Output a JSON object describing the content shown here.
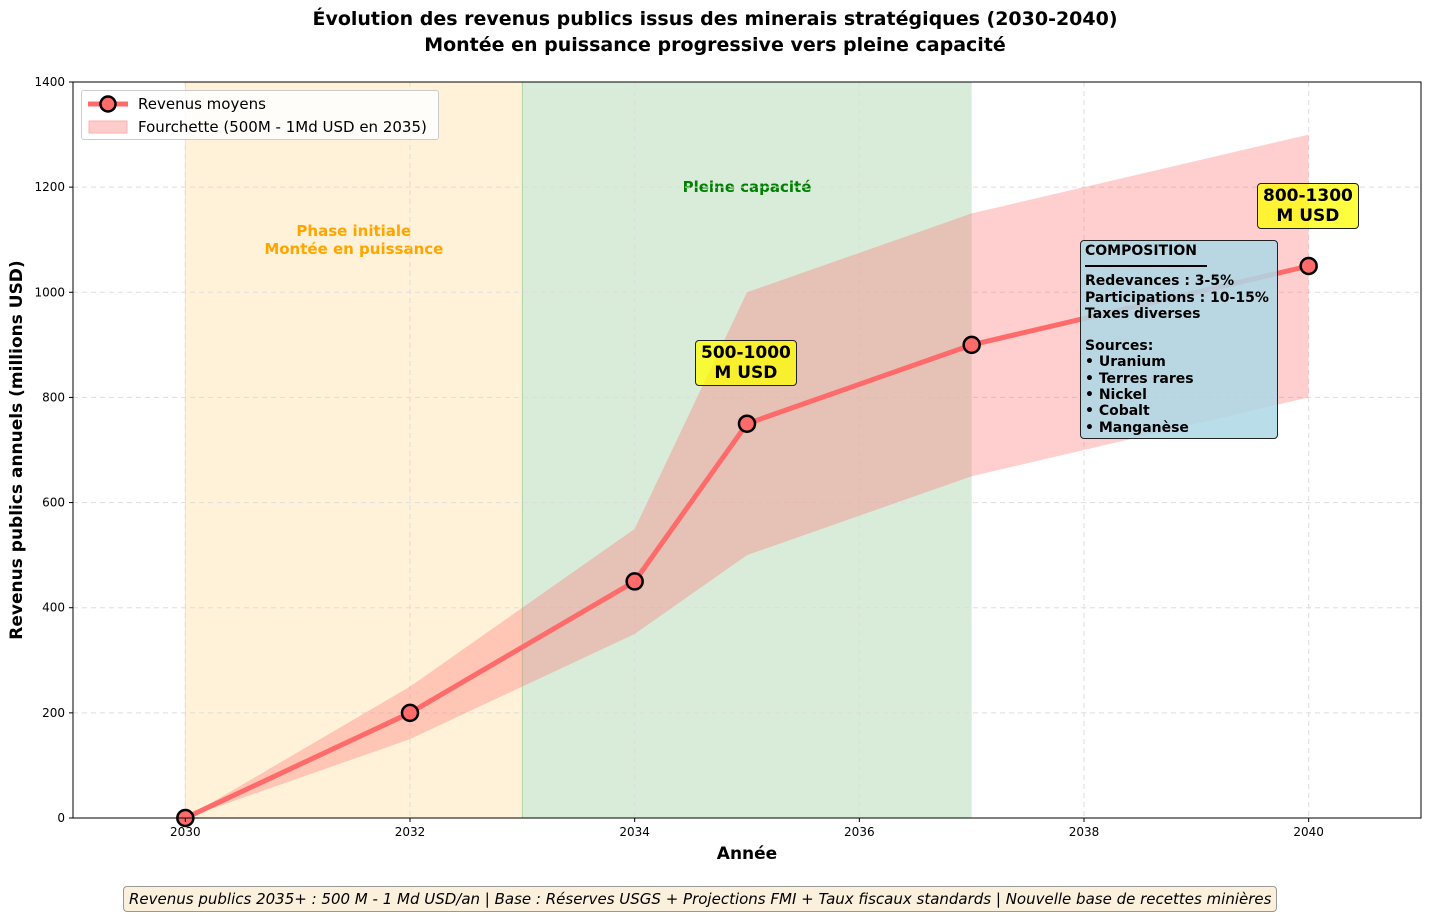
{
  "chart_data": {
    "type": "line",
    "title": "Évolution des revenus publics issus des minerais stratégiques (2030-2040)",
    "subtitle": "Montée en puissance progressive vers pleine capacité",
    "xlabel": "Année",
    "ylabel": "Revenus publics annuels (millions USD)",
    "xlim": [
      2029,
      2041
    ],
    "ylim": [
      0,
      1400
    ],
    "xticks": [
      2030,
      2032,
      2034,
      2036,
      2038,
      2040
    ],
    "yticks": [
      0,
      200,
      400,
      600,
      800,
      1000,
      1200,
      1400
    ],
    "grid": true,
    "legend_position": "top-left",
    "series": [
      {
        "name": "Revenus moyens",
        "x": [
          2030,
          2032,
          2034,
          2035,
          2037,
          2040
        ],
        "values": [
          0,
          200,
          450,
          750,
          900,
          1050
        ],
        "color": "#ff6b6b"
      }
    ],
    "band": {
      "name": "Fourchette (500M - 1Md USD en 2035)",
      "x": [
        2030,
        2032,
        2034,
        2035,
        2037,
        2040
      ],
      "lower": [
        0,
        150,
        350,
        500,
        650,
        800
      ],
      "upper": [
        0,
        250,
        550,
        1000,
        1150,
        1300
      ],
      "color": "#ff6b6b"
    },
    "phases": [
      {
        "label_lines": [
          "Phase initiale",
          "Montée en puissance"
        ],
        "from": 2030,
        "to": 2033,
        "color": "#ffa500",
        "label_color": "#ffa500"
      },
      {
        "label_lines": [
          "Pleine capacité"
        ],
        "from": 2033,
        "to": 2037,
        "color": "#008000",
        "label_color": "#008000"
      }
    ],
    "annotations": [
      {
        "lines": [
          "500-1000",
          "M USD"
        ],
        "x": 2035
      },
      {
        "lines": [
          "800-1300",
          "M USD"
        ],
        "x": 2040
      }
    ]
  },
  "composition": {
    "title": "COMPOSITION",
    "lines": [
      "Redevances : 3-5%",
      "Participations : 10-15%",
      "Taxes diverses"
    ],
    "sources_title": "Sources:",
    "sources": [
      "• Uranium",
      "• Terres rares",
      "• Nickel",
      "• Cobalt",
      "• Manganèse"
    ]
  },
  "footer": "Revenus publics 2035+ : 500 M - 1 Md USD/an | Base : Réserves USGS + Projections FMI + Taux fiscaux standards | Nouvelle base de recettes minières"
}
